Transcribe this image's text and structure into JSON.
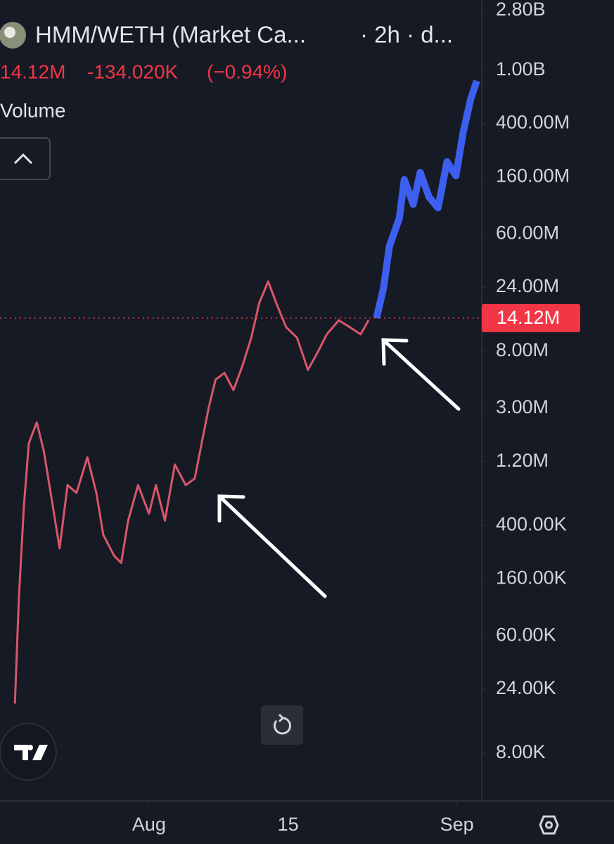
{
  "chart_data": {
    "type": "line",
    "title": "HMM/WETH (Market Ca...",
    "interval": "· 2h · d...",
    "last_label": "14.12M",
    "change": {
      "value": -134020,
      "label": "-134.020K"
    },
    "change_pct": {
      "value": -0.94,
      "label": "(−0.94%)"
    },
    "volume_label": "Volume",
    "last_value": {
      "value": 14120000,
      "label": "14.12M"
    },
    "log_scale": true,
    "xlim": [
      -15,
      33.5
    ],
    "xticks": [
      {
        "value": 0,
        "label": "Aug"
      },
      {
        "value": 14,
        "label": "15"
      },
      {
        "value": 31,
        "label": "Sep"
      }
    ],
    "ylim": [
      3500,
      3350000000
    ],
    "yticks": [
      {
        "value": 2800000000,
        "label": "2.80B"
      },
      {
        "value": 1000000000,
        "label": "1.00B"
      },
      {
        "value": 400000000,
        "label": "400.00M"
      },
      {
        "value": 160000000,
        "label": "160.00M"
      },
      {
        "value": 60000000,
        "label": "60.00M"
      },
      {
        "value": 24000000,
        "label": "24.00M"
      },
      {
        "value": 8000000,
        "label": "8.00M"
      },
      {
        "value": 3000000,
        "label": "3.00M"
      },
      {
        "value": 1200000,
        "label": "1.20M"
      },
      {
        "value": 400000,
        "label": "400.00K"
      },
      {
        "value": 160000,
        "label": "160.00K"
      },
      {
        "value": 60000,
        "label": "60.00K"
      },
      {
        "value": 24000,
        "label": "24.00K"
      },
      {
        "value": 8000,
        "label": "8.00K"
      }
    ],
    "series": [
      {
        "color": "#d9566a",
        "x": [
          -13.5,
          -13.1,
          -12.6,
          -12.1,
          -11.3,
          -10.6,
          -9.9,
          -9.0,
          -8.2,
          -7.3,
          -6.2,
          -5.3,
          -4.6,
          -3.5,
          -2.8,
          -2.1,
          -1.1,
          0,
          0.7,
          1.6,
          2.6,
          3.7,
          4.6,
          5.3,
          6.0,
          6.7,
          7.6,
          8.5,
          9.4,
          10.3,
          11.1,
          12.0,
          12.8,
          13.8,
          14.9,
          16.0,
          17.0,
          17.9,
          19.1,
          20.2,
          21.3,
          22.1
        ],
        "values": [
          18700,
          115000,
          550000,
          1640000,
          2350000,
          1450000,
          700000,
          270000,
          800000,
          700000,
          1290000,
          700000,
          340000,
          237000,
          210000,
          434000,
          800000,
          490000,
          800000,
          434000,
          1140000,
          800000,
          896000,
          1640000,
          3000000,
          4900000,
          5500000,
          4100000,
          6200000,
          10100000,
          18400000,
          26500000,
          18400000,
          12100000,
          10100000,
          5800000,
          7900000,
          10700000,
          13600000,
          12100000,
          10700000,
          13600000
        ]
      },
      {
        "color": "#3d5ff0",
        "x": [
          22.9,
          23.6,
          24.2,
          25.2,
          25.7,
          26.6,
          27.3,
          28.2,
          29.1,
          30.0,
          30.9,
          31.6,
          32.4,
          33.0
        ],
        "values": [
          14120000,
          23500000,
          48500000,
          78700000,
          153000000,
          100000000,
          173000000,
          113000000,
          94000000,
          208000000,
          163000000,
          337000000,
          616000000,
          834000000
        ]
      }
    ]
  }
}
